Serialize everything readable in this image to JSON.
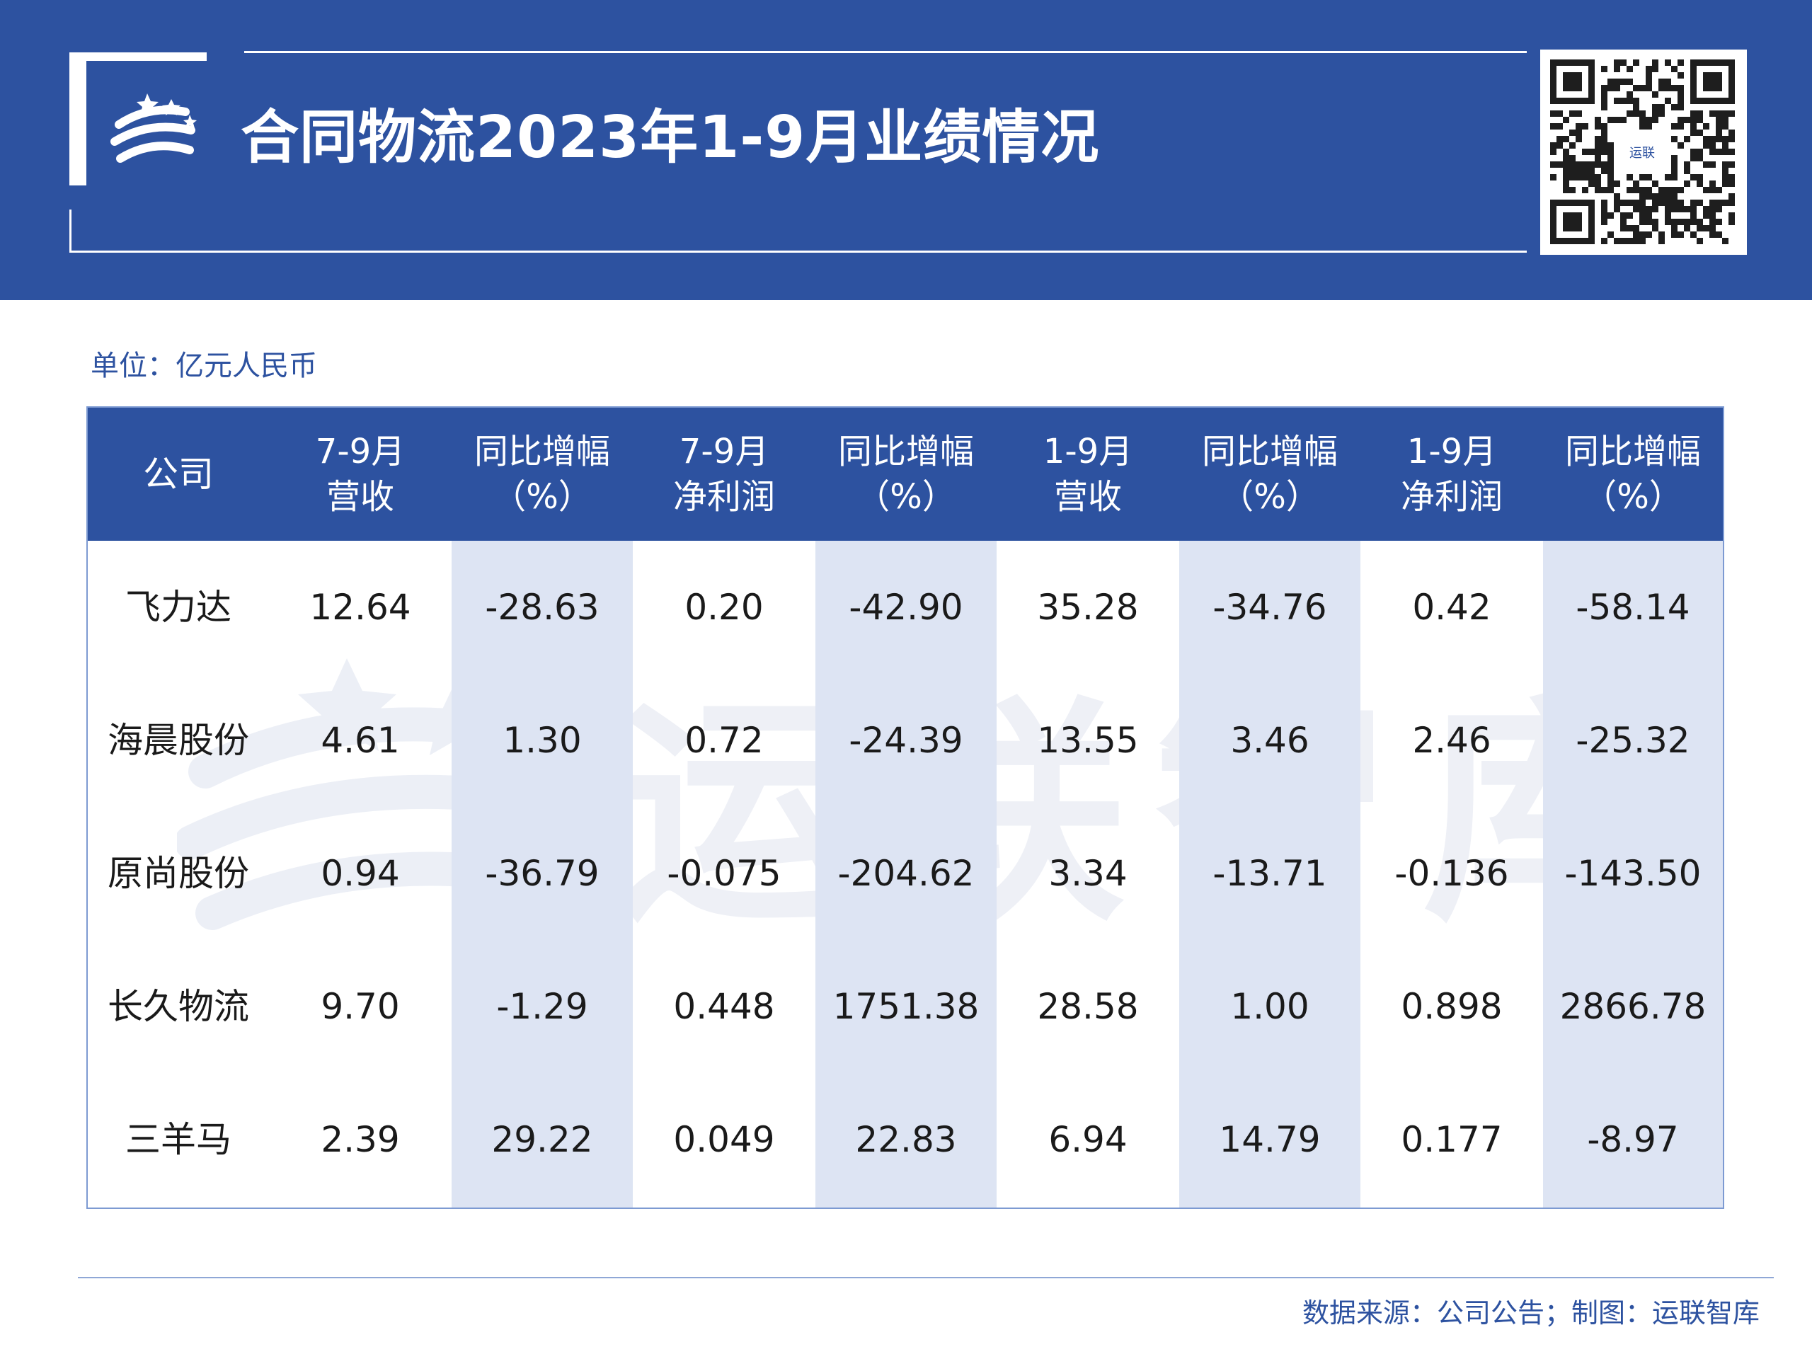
{
  "header": {
    "title": "合同物流2023年1-9月业绩情况",
    "qr_logo_text": "运联"
  },
  "unit_label": "单位：亿元人民币",
  "watermark": "运联智库",
  "table": {
    "columns": [
      [
        "公司"
      ],
      [
        "7-9月",
        "营收"
      ],
      [
        "同比增幅",
        "（%）"
      ],
      [
        "7-9月",
        "净利润"
      ],
      [
        "同比增幅",
        "（%）"
      ],
      [
        "1-9月",
        "营收"
      ],
      [
        "同比增幅",
        "（%）"
      ],
      [
        "1-9月",
        "净利润"
      ],
      [
        "同比增幅",
        "（%）"
      ]
    ],
    "rows": [
      [
        "飞力达",
        "12.64",
        "-28.63",
        "0.20",
        "-42.90",
        "35.28",
        "-34.76",
        "0.42",
        "-58.14"
      ],
      [
        "海晨股份",
        "4.61",
        "1.30",
        "0.72",
        "-24.39",
        "13.55",
        "3.46",
        "2.46",
        "-25.32"
      ],
      [
        "原尚股份",
        "0.94",
        "-36.79",
        "-0.075",
        "-204.62",
        "3.34",
        "-13.71",
        "-0.136",
        "-143.50"
      ],
      [
        "长久物流",
        "9.70",
        "-1.29",
        "0.448",
        "1751.38",
        "28.58",
        "1.00",
        "0.898",
        "2866.78"
      ],
      [
        "三羊马",
        "2.39",
        "29.22",
        "0.049",
        "22.83",
        "6.94",
        "14.79",
        "0.177",
        "-8.97"
      ]
    ]
  },
  "footer": {
    "source": "数据来源：公司公告；制图：运联智库"
  },
  "colors": {
    "brand_blue": "#2d52a0",
    "shade_blue": "#dde4f3",
    "border_blue": "#7d9ad2"
  }
}
